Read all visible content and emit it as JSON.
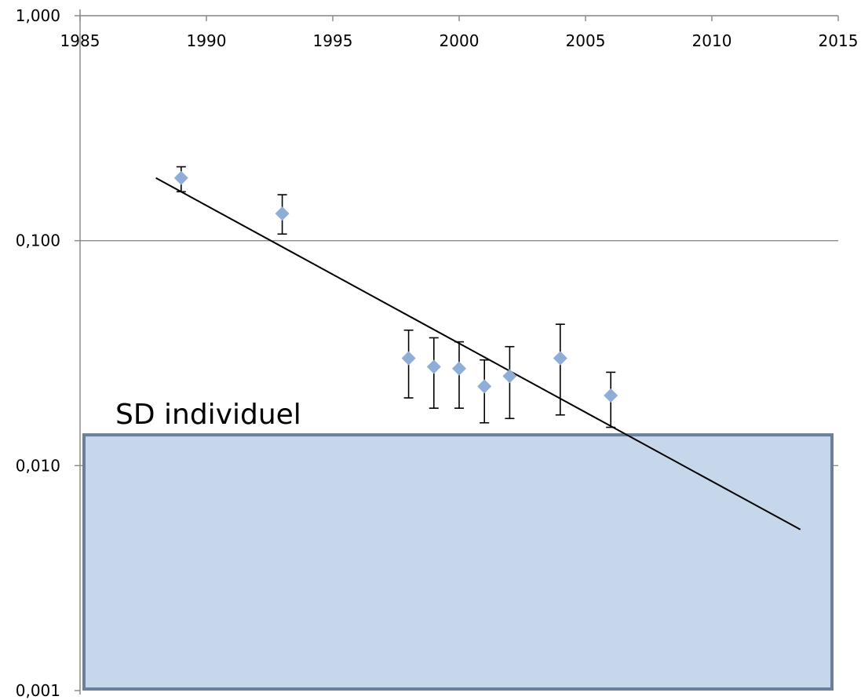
{
  "chart_data": {
    "type": "scatter",
    "title": "",
    "xlabel": "",
    "ylabel": "",
    "x_axis_position": "top",
    "xlim": [
      1985,
      2015
    ],
    "ylim": [
      0.001,
      1
    ],
    "y_scale": "log",
    "x_ticks": [
      1985,
      1990,
      1995,
      2000,
      2005,
      2010,
      2015
    ],
    "x_tick_labels": [
      "1985",
      "1990",
      "1995",
      "2000",
      "2005",
      "2010",
      "2015"
    ],
    "y_ticks": [
      1,
      0.1,
      0.01,
      0.001
    ],
    "y_tick_labels": [
      "1,000",
      "0,100",
      "0,010",
      "0,001"
    ],
    "grid": "horizontal",
    "legend": "none",
    "series": [
      {
        "marker": "diamond",
        "color": "#8eaed8",
        "points": [
          {
            "x": 1989,
            "y": 0.19,
            "err_low": 0.165,
            "err_high": 0.213
          },
          {
            "x": 1993,
            "y": 0.132,
            "err_low": 0.107,
            "err_high": 0.16
          },
          {
            "x": 1998,
            "y": 0.03,
            "err_low": 0.02,
            "err_high": 0.04
          },
          {
            "x": 1999,
            "y": 0.0275,
            "err_low": 0.018,
            "err_high": 0.037
          },
          {
            "x": 2000,
            "y": 0.027,
            "err_low": 0.018,
            "err_high": 0.0355
          },
          {
            "x": 2001,
            "y": 0.0225,
            "err_low": 0.0155,
            "err_high": 0.0295
          },
          {
            "x": 2002,
            "y": 0.025,
            "err_low": 0.0162,
            "err_high": 0.0338
          },
          {
            "x": 2004,
            "y": 0.03,
            "err_low": 0.0168,
            "err_high": 0.0425
          },
          {
            "x": 2006,
            "y": 0.0205,
            "err_low": 0.0148,
            "err_high": 0.026
          }
        ]
      }
    ],
    "trendline": {
      "color": "#000000",
      "x": [
        1988,
        2013.5
      ],
      "y": [
        0.19,
        0.0052
      ]
    },
    "region": {
      "label": "SD individuel",
      "y_from": 0.001,
      "y_to": 0.0137,
      "fill": "#c6d7ec",
      "border": "#6a7f99"
    }
  }
}
